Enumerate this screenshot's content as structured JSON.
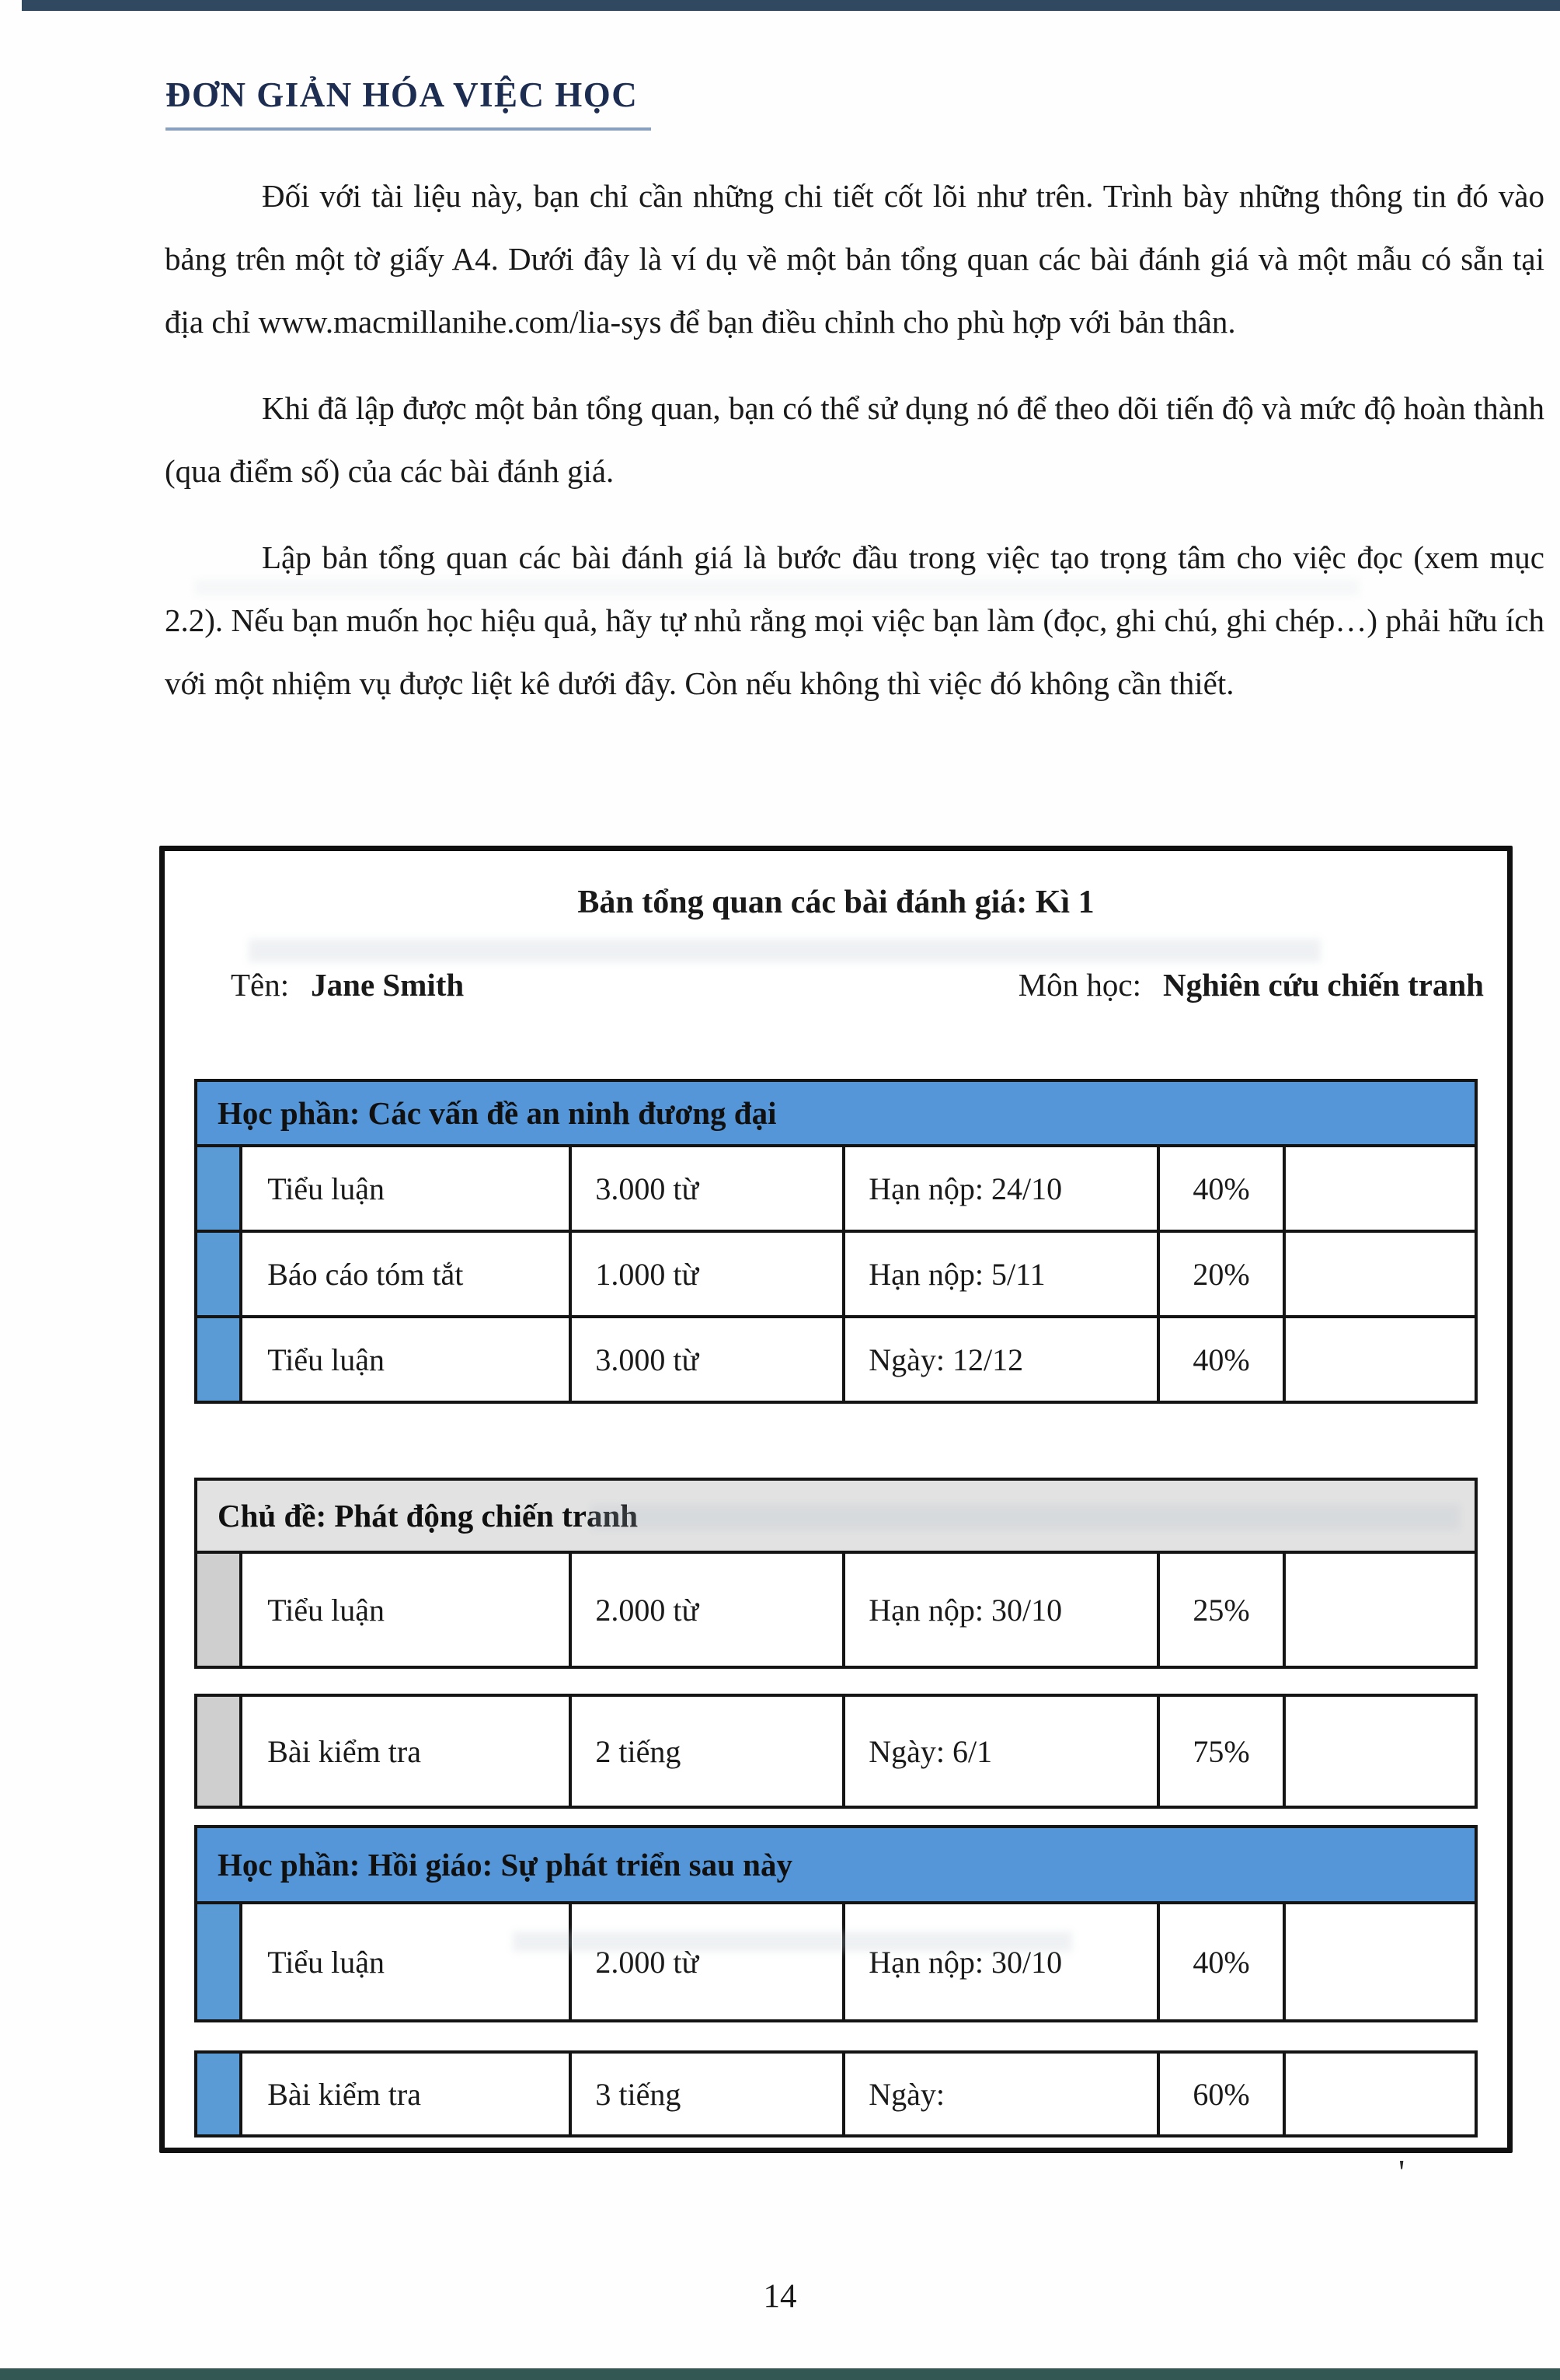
{
  "page": {
    "header_title": "ĐƠN GIẢN HÓA VIỆC HỌC",
    "page_number": "14"
  },
  "paragraphs": [
    "Đối với tài liệu này, bạn chỉ cần những chi tiết cốt lõi như trên. Trình bày những thông tin đó vào bảng trên một tờ giấy A4. Dưới đây là ví dụ về một bản tổng quan các bài đánh giá và một mẫu có sẵn tại địa chỉ www.macmillanihe.com/lia-sys để bạn điều chỉnh cho phù hợp với bản thân.",
    "Khi đã lập được một bản tổng quan, bạn có thể sử dụng nó để theo dõi tiến độ và mức độ hoàn thành (qua điểm số) của các bài đánh giá.",
    "Lập bản tổng quan các bài đánh giá là bước đầu trong việc tạo trọng tâm cho việc đọc (xem mục 2.2). Nếu bạn muốn học hiệu quả, hãy tự nhủ rằng mọi việc bạn làm (đọc, ghi chú, ghi chép…) phải hữu ích với một nhiệm vụ được liệt kê dưới đây. Còn nếu không thì việc đó không cần thiết."
  ],
  "overview_box": {
    "title": "Bản tổng quan các bài đánh giá: Kì 1",
    "name_label": "Tên:",
    "name_value": "Jane Smith",
    "subject_label": "Môn học:",
    "subject_value": "Nghiên cứu chiến tranh",
    "sections": [
      {
        "heading": "Học phần: Các vấn đề an ninh đương đại",
        "theme": "blue",
        "rows": [
          {
            "type": "Tiểu luận",
            "length": "3.000 từ",
            "due": "Hạn nộp: 24/10",
            "weight": "40%",
            "note": ""
          },
          {
            "type": "Báo cáo tóm tắt",
            "length": "1.000 từ",
            "due": "Hạn nộp: 5/11",
            "weight": "20%",
            "note": ""
          },
          {
            "type": "Tiểu luận",
            "length": "3.000 từ",
            "due": "Ngày: 12/12",
            "weight": "40%",
            "note": ""
          }
        ]
      },
      {
        "heading": "Chủ đề: Phát động chiến tranh",
        "theme": "gray",
        "rows": [
          {
            "type": "Tiểu luận",
            "length": "2.000 từ",
            "due": "Hạn nộp: 30/10",
            "weight": "25%",
            "note": ""
          },
          {
            "type": "Bài kiểm tra",
            "length": "2 tiếng",
            "due": "Ngày: 6/1",
            "weight": "75%",
            "note": ""
          }
        ]
      },
      {
        "heading": "Học phần: Hồi giáo: Sự phát triển sau này",
        "theme": "blue",
        "rows": [
          {
            "type": "Tiểu luận",
            "length": "2.000 từ",
            "due": "Hạn nộp: 30/10",
            "weight": "40%",
            "note": ""
          },
          {
            "type": "Bài kiểm tra",
            "length": "3 tiếng",
            "due": "Ngày:",
            "weight": "60%",
            "note": ""
          }
        ]
      }
    ]
  },
  "colors": {
    "accent_blue": "#5596d8",
    "section_gray": "#e2e2e2",
    "heading_navy": "#1d2d52"
  },
  "artifacts": {
    "stray_mark": "'"
  }
}
